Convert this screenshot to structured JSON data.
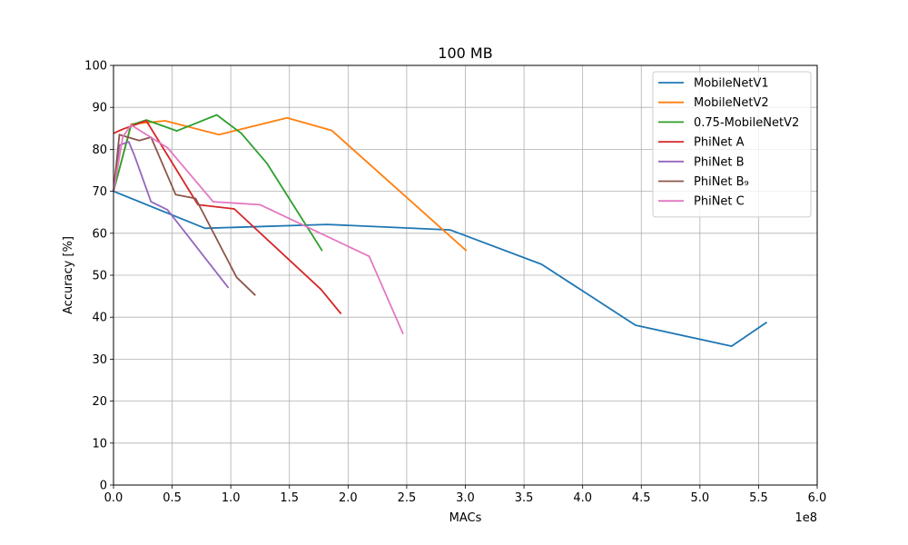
{
  "chart_data": {
    "type": "line",
    "title": "100 MB",
    "xlabel": "MACs",
    "ylabel": "Accuracy [%]",
    "x_offset_label": "1e8",
    "xlim": [
      0,
      6.0
    ],
    "ylim": [
      0,
      100
    ],
    "x_ticks": [
      "0.0",
      "0.5",
      "1.0",
      "1.5",
      "2.0",
      "2.5",
      "3.0",
      "3.5",
      "4.0",
      "4.5",
      "5.0",
      "5.5",
      "6.0"
    ],
    "y_ticks": [
      "0",
      "10",
      "20",
      "30",
      "40",
      "50",
      "60",
      "70",
      "80",
      "90",
      "100"
    ],
    "grid": true,
    "legend_position": "top-right",
    "series": [
      {
        "name": "MobileNetV1",
        "color": "#1f77b4",
        "x": [
          0.0,
          0.78,
          1.82,
          2.87,
          3.65,
          4.45,
          5.27,
          5.57
        ],
        "y": [
          70.0,
          61.2,
          62.1,
          60.8,
          52.6,
          38.1,
          33.1,
          38.8
        ]
      },
      {
        "name": "MobileNetV2",
        "color": "#ff7f0e",
        "x": [
          0.0,
          0.15,
          0.44,
          0.9,
          1.48,
          1.86,
          3.01
        ],
        "y": [
          70.0,
          86.0,
          86.8,
          83.5,
          87.5,
          84.5,
          55.8
        ]
      },
      {
        "name": "0.75-MobileNetV2",
        "color": "#2ca02c",
        "x": [
          0.0,
          0.15,
          0.28,
          0.54,
          0.88,
          1.09,
          1.31,
          1.78
        ],
        "y": [
          70.0,
          85.8,
          87.0,
          84.4,
          88.2,
          83.8,
          76.6,
          55.8
        ]
      },
      {
        "name": "PhiNet A",
        "color": "#d62728",
        "x": [
          0.0,
          0.08,
          0.28,
          0.72,
          1.03,
          1.77,
          1.94
        ],
        "y": [
          83.8,
          84.8,
          86.8,
          66.8,
          65.8,
          46.6,
          40.8
        ]
      },
      {
        "name": "PhiNet B",
        "color": "#9467bd",
        "x": [
          0.0,
          0.05,
          0.13,
          0.18,
          0.32,
          0.46,
          0.98
        ],
        "y": [
          70.0,
          81.0,
          81.8,
          78.4,
          67.5,
          65.6,
          47.0
        ]
      },
      {
        "name": "PhiNet B₉",
        "color": "#8c564b",
        "x": [
          0.0,
          0.05,
          0.22,
          0.32,
          0.53,
          0.7,
          1.05,
          1.21
        ],
        "y": [
          70.0,
          83.5,
          82.1,
          82.9,
          69.2,
          68.3,
          49.5,
          45.2
        ]
      },
      {
        "name": "PhiNet C",
        "color": "#e377c2",
        "x": [
          0.0,
          0.08,
          0.15,
          0.46,
          0.85,
          1.25,
          2.18,
          2.47
        ],
        "y": [
          70.0,
          83.0,
          85.8,
          80.4,
          67.5,
          66.8,
          54.5,
          36.0
        ]
      }
    ]
  }
}
